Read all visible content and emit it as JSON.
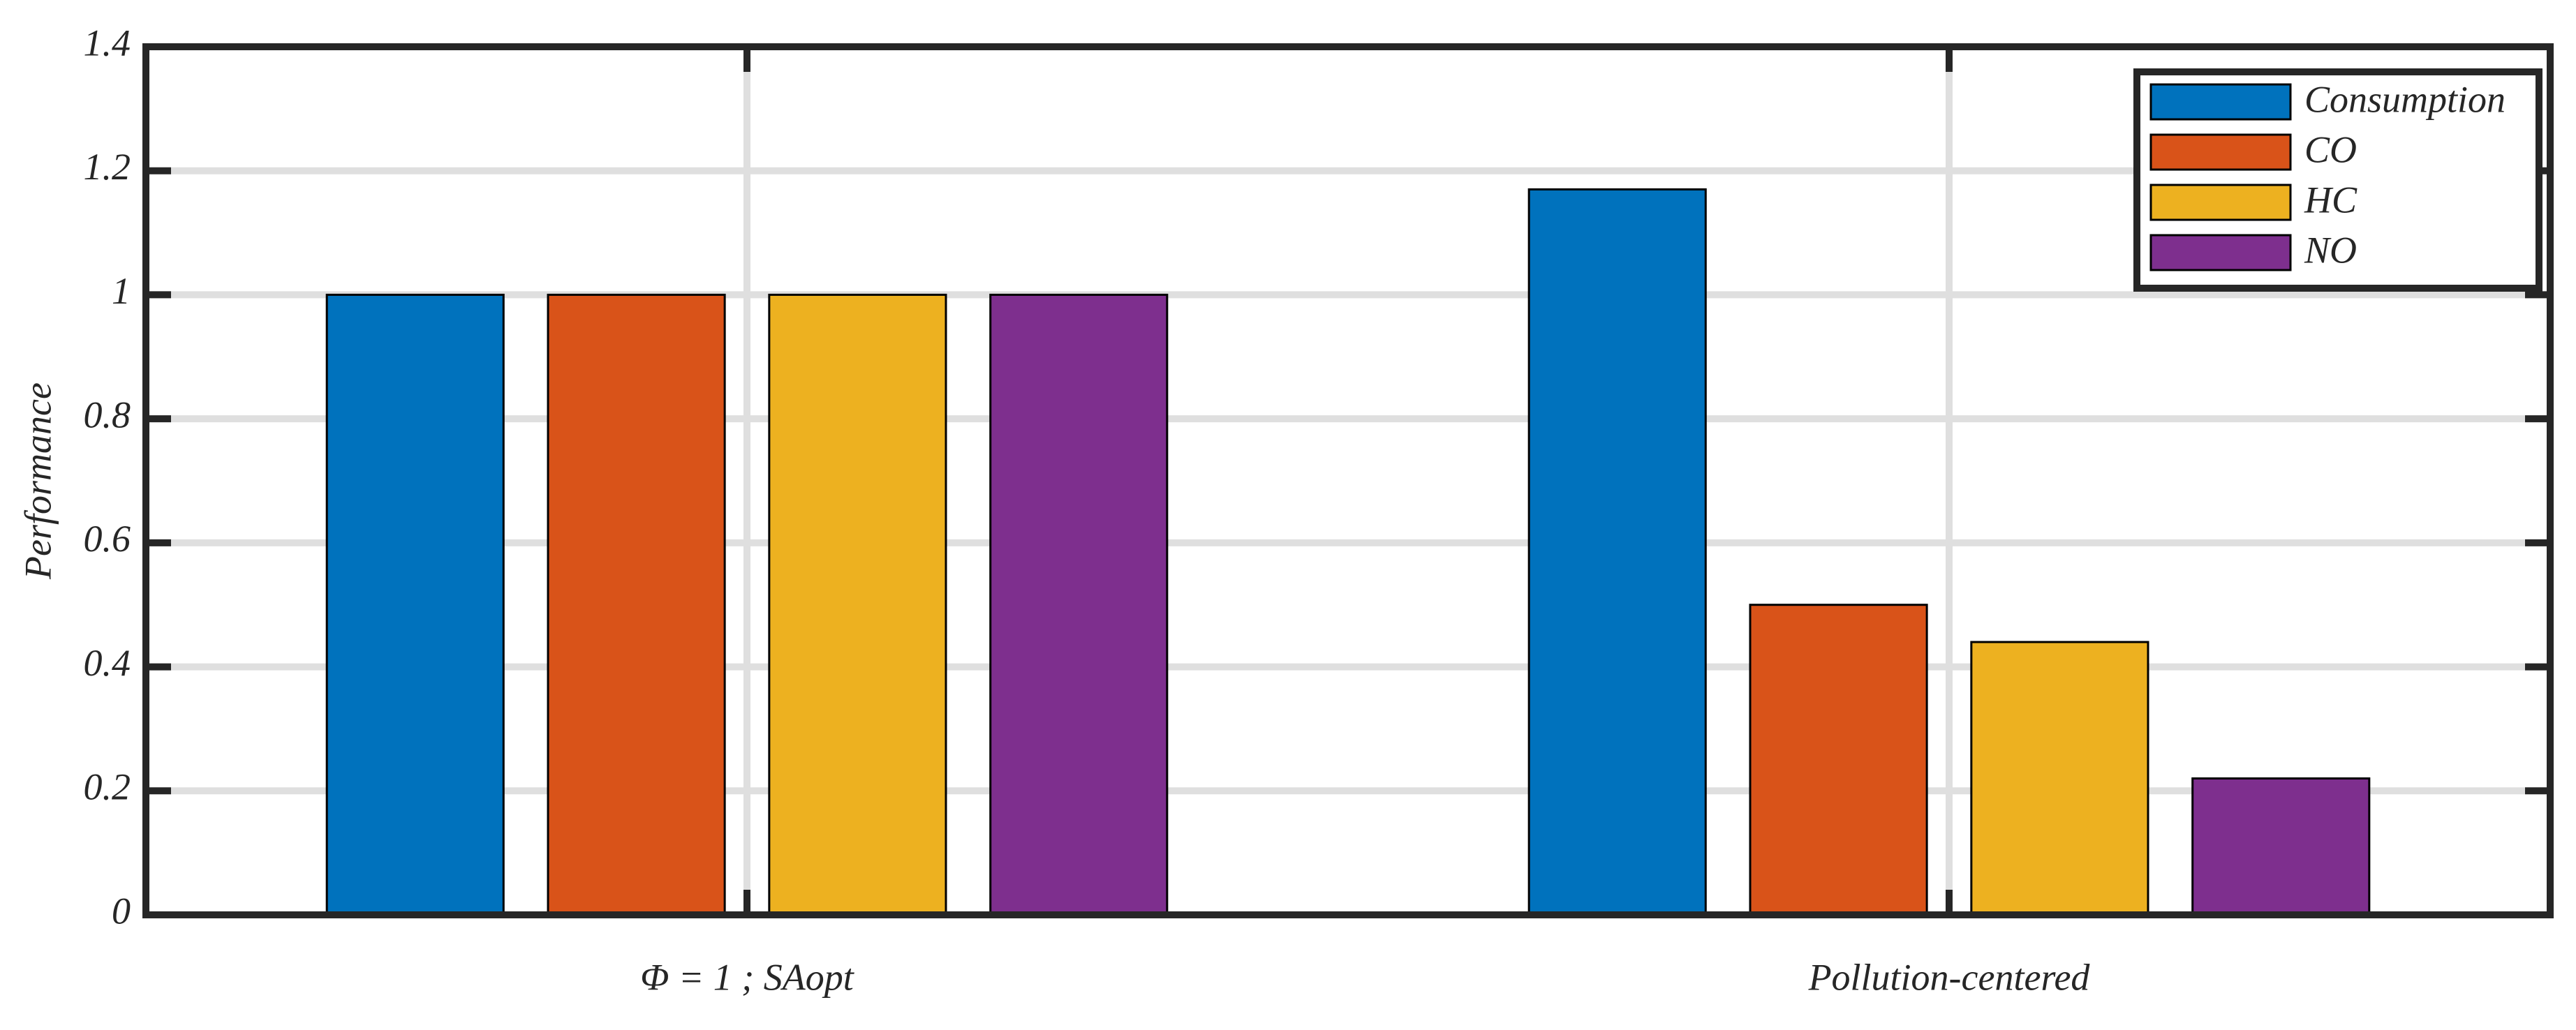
{
  "chart_data": {
    "type": "bar",
    "y_label": "Performance",
    "categories": [
      "Φ = 1 ; SAopt",
      "Pollution-centered"
    ],
    "series": [
      {
        "name": "Consumption",
        "color": "#0072bd",
        "values": [
          1,
          1.17
        ]
      },
      {
        "name": "CO",
        "color": "#d95319",
        "values": [
          1,
          0.5
        ]
      },
      {
        "name": "HC",
        "color": "#edb120",
        "values": [
          1,
          0.44
        ]
      },
      {
        "name": "NO",
        "color": "#7e2f8e",
        "values": [
          1,
          0.22
        ]
      }
    ],
    "ylim": [
      0,
      1.4
    ],
    "yticks": [
      0,
      0.2,
      0.4,
      0.6,
      0.8,
      1,
      1.2,
      1.4
    ],
    "grid": true,
    "legend": "top-right"
  }
}
